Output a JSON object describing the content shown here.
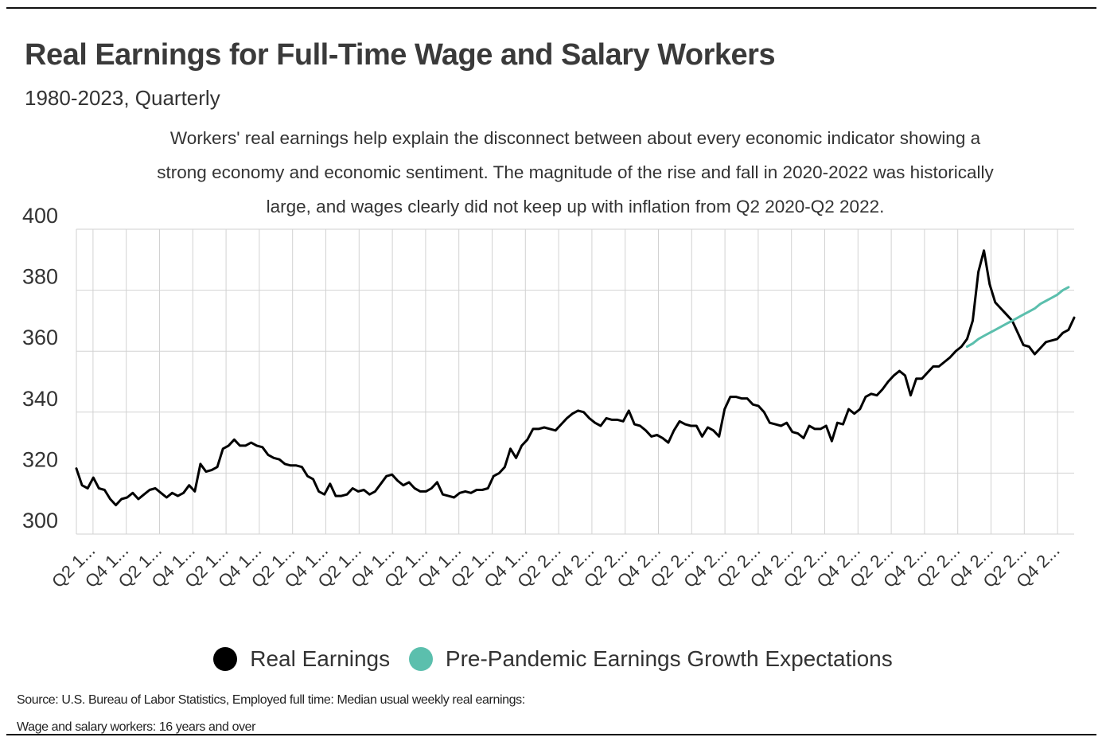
{
  "header": {
    "title": "Real Earnings for Full-Time Wage and Salary Workers",
    "subtitle": "1980-2023, Quarterly",
    "description": "Workers' real earnings help explain the disconnect between about every economic indicator showing a strong economy and economic sentiment. The magnitude of the rise and fall in 2020-2022 was historically large, and wages clearly did not keep up with inflation from Q2 2020-Q2 2022."
  },
  "legend": {
    "items": [
      {
        "label": "Real Earnings",
        "color": "#000000"
      },
      {
        "label": "Pre-Pandemic Earnings Growth Expectations",
        "color": "#5bbfad"
      }
    ]
  },
  "source": {
    "line1": "Source:  U.S. Bureau of Labor Statistics, Employed full time: Median usual weekly real earnings:",
    "line2": "Wage and salary workers: 16 years and over"
  },
  "chart_data": {
    "type": "line",
    "ylim": [
      300,
      400
    ],
    "yticks": [
      300,
      320,
      340,
      360,
      380,
      400
    ],
    "grid": true,
    "legend_position": "bottom",
    "x_tick_labels": [
      "Q2 1...",
      "Q4 1...",
      "Q2 1...",
      "Q4 1...",
      "Q2 1...",
      "Q4 1...",
      "Q2 1...",
      "Q4 1...",
      "Q2 1...",
      "Q4 1...",
      "Q2 1...",
      "Q4 1...",
      "Q2 1...",
      "Q4 1...",
      "Q2 2...",
      "Q4 2...",
      "Q2 2...",
      "Q4 2...",
      "Q2 2...",
      "Q4 2...",
      "Q2 2...",
      "Q4 2...",
      "Q2 2...",
      "Q4 2...",
      "Q2 2...",
      "Q4 2...",
      "Q2 2...",
      "Q4 2...",
      "Q2 2...",
      "Q4 2..."
    ],
    "series": [
      {
        "name": "Real Earnings",
        "color": "#000000",
        "points": [
          [
            "1980Q1",
            321.5
          ],
          [
            "1980Q2",
            316
          ],
          [
            "1980Q3",
            315
          ],
          [
            "1980Q4",
            318.5
          ],
          [
            "1981Q1",
            315
          ],
          [
            "1981Q2",
            314.5
          ],
          [
            "1981Q3",
            311.5
          ],
          [
            "1981Q4",
            309.5
          ],
          [
            "1982Q1",
            311.5
          ],
          [
            "1982Q2",
            312
          ],
          [
            "1982Q3",
            313.5
          ],
          [
            "1982Q4",
            311.5
          ],
          [
            "1983Q1",
            313
          ],
          [
            "1983Q2",
            314.5
          ],
          [
            "1983Q3",
            315
          ],
          [
            "1983Q4",
            313.5
          ],
          [
            "1984Q1",
            312
          ],
          [
            "1984Q2",
            313.5
          ],
          [
            "1984Q3",
            312.5
          ],
          [
            "1984Q4",
            313.5
          ],
          [
            "1985Q1",
            316
          ],
          [
            "1985Q2",
            314
          ],
          [
            "1985Q3",
            323
          ],
          [
            "1985Q4",
            320.5
          ],
          [
            "1986Q1",
            321
          ],
          [
            "1986Q2",
            322
          ],
          [
            "1986Q3",
            328
          ],
          [
            "1986Q4",
            329
          ],
          [
            "1987Q1",
            331
          ],
          [
            "1987Q2",
            329
          ],
          [
            "1987Q3",
            329
          ],
          [
            "1987Q4",
            330
          ],
          [
            "1988Q1",
            329
          ],
          [
            "1988Q2",
            328.5
          ],
          [
            "1988Q3",
            326
          ],
          [
            "1988Q4",
            325
          ],
          [
            "1989Q1",
            324.5
          ],
          [
            "1989Q2",
            323
          ],
          [
            "1989Q3",
            322.5
          ],
          [
            "1989Q4",
            322.5
          ],
          [
            "1990Q1",
            322
          ],
          [
            "1990Q2",
            319
          ],
          [
            "1990Q3",
            318
          ],
          [
            "1990Q4",
            314
          ],
          [
            "1991Q1",
            313
          ],
          [
            "1991Q2",
            316.5
          ],
          [
            "1991Q3",
            312.5
          ],
          [
            "1991Q4",
            312.5
          ],
          [
            "1992Q1",
            313
          ],
          [
            "1992Q2",
            315
          ],
          [
            "1992Q3",
            314
          ],
          [
            "1992Q4",
            314.5
          ],
          [
            "1993Q1",
            313
          ],
          [
            "1993Q2",
            314
          ],
          [
            "1993Q3",
            316.5
          ],
          [
            "1993Q4",
            319
          ],
          [
            "1994Q1",
            319.5
          ],
          [
            "1994Q2",
            317.5
          ],
          [
            "1994Q3",
            316
          ],
          [
            "1994Q4",
            317
          ],
          [
            "1995Q1",
            315
          ],
          [
            "1995Q2",
            314
          ],
          [
            "1995Q3",
            314
          ],
          [
            "1995Q4",
            315
          ],
          [
            "1996Q1",
            317
          ],
          [
            "1996Q2",
            313
          ],
          [
            "1996Q3",
            312.5
          ],
          [
            "1996Q4",
            312
          ],
          [
            "1997Q1",
            313.5
          ],
          [
            "1997Q2",
            314
          ],
          [
            "1997Q3",
            313.5
          ],
          [
            "1997Q4",
            314.5
          ],
          [
            "1998Q1",
            314.5
          ],
          [
            "1998Q2",
            315
          ],
          [
            "1998Q3",
            319
          ],
          [
            "1998Q4",
            320
          ],
          [
            "1999Q1",
            322
          ],
          [
            "1999Q2",
            328
          ],
          [
            "1999Q3",
            325
          ],
          [
            "1999Q4",
            329
          ],
          [
            "2000Q1",
            331
          ],
          [
            "2000Q2",
            334.5
          ],
          [
            "2000Q3",
            334.5
          ],
          [
            "2000Q4",
            335
          ],
          [
            "2001Q1",
            334.5
          ],
          [
            "2001Q2",
            334
          ],
          [
            "2001Q3",
            336
          ],
          [
            "2001Q4",
            338
          ],
          [
            "2002Q1",
            339.5
          ],
          [
            "2002Q2",
            340.5
          ],
          [
            "2002Q3",
            340
          ],
          [
            "2002Q4",
            338
          ],
          [
            "2003Q1",
            336.5
          ],
          [
            "2003Q2",
            335.5
          ],
          [
            "2003Q3",
            338
          ],
          [
            "2003Q4",
            337.5
          ],
          [
            "2004Q1",
            337.5
          ],
          [
            "2004Q2",
            337
          ],
          [
            "2004Q3",
            340.5
          ],
          [
            "2004Q4",
            336
          ],
          [
            "2005Q1",
            335.5
          ],
          [
            "2005Q2",
            334
          ],
          [
            "2005Q3",
            332
          ],
          [
            "2005Q4",
            332.5
          ],
          [
            "2006Q1",
            331.5
          ],
          [
            "2006Q2",
            330
          ],
          [
            "2006Q3",
            334
          ],
          [
            "2006Q4",
            337
          ],
          [
            "2007Q1",
            336
          ],
          [
            "2007Q2",
            335.5
          ],
          [
            "2007Q3",
            335.5
          ],
          [
            "2007Q4",
            332
          ],
          [
            "2008Q1",
            335
          ],
          [
            "2008Q2",
            334
          ],
          [
            "2008Q3",
            332
          ],
          [
            "2008Q4",
            341
          ],
          [
            "2009Q1",
            345
          ],
          [
            "2009Q2",
            345
          ],
          [
            "2009Q3",
            344.5
          ],
          [
            "2009Q4",
            344.5
          ],
          [
            "2010Q1",
            342.5
          ],
          [
            "2010Q2",
            342
          ],
          [
            "2010Q3",
            340
          ],
          [
            "2010Q4",
            336.5
          ],
          [
            "2011Q1",
            336
          ],
          [
            "2011Q2",
            335.5
          ],
          [
            "2011Q3",
            336.5
          ],
          [
            "2011Q4",
            333.5
          ],
          [
            "2012Q1",
            333
          ],
          [
            "2012Q2",
            331.5
          ],
          [
            "2012Q3",
            335.5
          ],
          [
            "2012Q4",
            334.5
          ],
          [
            "2013Q1",
            334.5
          ],
          [
            "2013Q2",
            335.5
          ],
          [
            "2013Q3",
            330.5
          ],
          [
            "2013Q4",
            336.5
          ],
          [
            "2014Q1",
            336
          ],
          [
            "2014Q2",
            341
          ],
          [
            "2014Q3",
            339.5
          ],
          [
            "2014Q4",
            341
          ],
          [
            "2015Q1",
            345
          ],
          [
            "2015Q2",
            346
          ],
          [
            "2015Q3",
            345.5
          ],
          [
            "2015Q4",
            347.5
          ],
          [
            "2016Q1",
            350
          ],
          [
            "2016Q2",
            352
          ],
          [
            "2016Q3",
            353.5
          ],
          [
            "2016Q4",
            352
          ],
          [
            "2017Q1",
            345.5
          ],
          [
            "2017Q2",
            351
          ],
          [
            "2017Q3",
            351
          ],
          [
            "2017Q4",
            353
          ],
          [
            "2018Q1",
            355
          ],
          [
            "2018Q2",
            355
          ],
          [
            "2018Q3",
            356.5
          ],
          [
            "2018Q4",
            358
          ],
          [
            "2019Q1",
            360
          ],
          [
            "2019Q2",
            361.5
          ],
          [
            "2019Q3",
            364
          ],
          [
            "2019Q4",
            370
          ],
          [
            "2020Q1",
            386
          ],
          [
            "2020Q2",
            393
          ],
          [
            "2020Q3",
            382
          ],
          [
            "2020Q4",
            376
          ],
          [
            "2021Q1",
            374
          ],
          [
            "2021Q2",
            372
          ],
          [
            "2021Q3",
            370
          ],
          [
            "2021Q4",
            366
          ],
          [
            "2022Q1",
            362
          ],
          [
            "2022Q2",
            361.5
          ],
          [
            "2022Q3",
            359
          ],
          [
            "2022Q4",
            361
          ],
          [
            "2023Q1",
            363
          ],
          [
            "2023Q2",
            363.5
          ],
          [
            "2023Q3",
            364
          ],
          [
            "2023Q4",
            366
          ],
          [
            "2024Q1",
            367
          ],
          [
            "2024Q2",
            371
          ]
        ]
      },
      {
        "name": "Pre-Pandemic Earnings Growth Expectations",
        "color": "#5bbfad",
        "points": [
          [
            "2019Q3",
            361.5
          ],
          [
            "2019Q4",
            362.5
          ],
          [
            "2020Q1",
            364
          ],
          [
            "2020Q2",
            365
          ],
          [
            "2020Q3",
            366
          ],
          [
            "2020Q4",
            367
          ],
          [
            "2021Q1",
            368
          ],
          [
            "2021Q2",
            369
          ],
          [
            "2021Q3",
            370
          ],
          [
            "2021Q4",
            371
          ],
          [
            "2022Q1",
            372
          ],
          [
            "2022Q2",
            373
          ],
          [
            "2022Q3",
            374
          ],
          [
            "2022Q4",
            375.5
          ],
          [
            "2023Q1",
            376.5
          ],
          [
            "2023Q2",
            377.5
          ],
          [
            "2023Q3",
            378.5
          ],
          [
            "2023Q4",
            380
          ],
          [
            "2024Q1",
            381
          ]
        ]
      }
    ]
  }
}
